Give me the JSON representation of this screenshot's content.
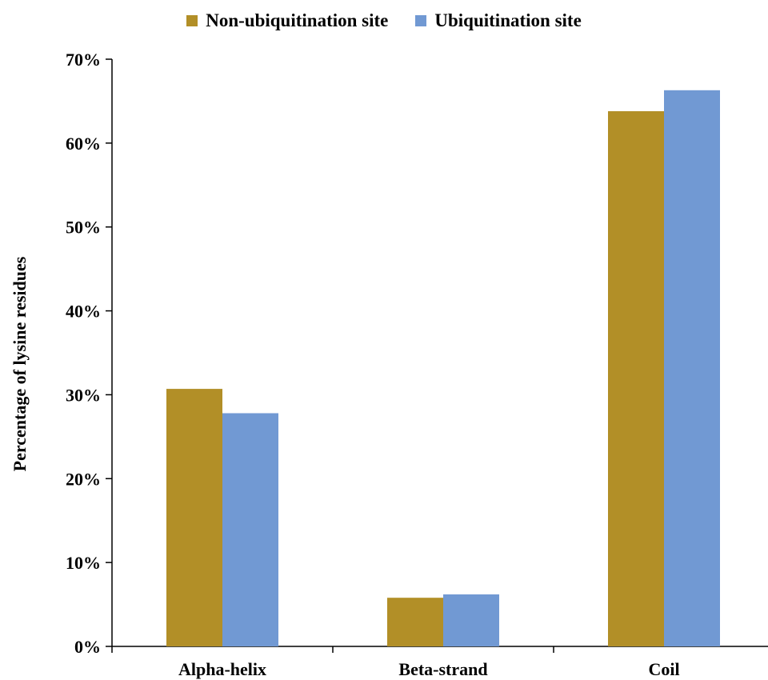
{
  "chart_data": {
    "type": "bar",
    "categories": [
      "Alpha-helix",
      "Beta-strand",
      "Coil"
    ],
    "series": [
      {
        "name": "Non-ubiquitination site",
        "color": "#b28f27",
        "values": [
          30.7,
          5.8,
          63.8
        ]
      },
      {
        "name": "Ubiquitination site",
        "color": "#7199d3",
        "values": [
          27.8,
          6.2,
          66.3
        ]
      }
    ],
    "ylabel": "Percentage of lysine residues",
    "ylim": [
      0,
      70
    ],
    "yticks": [
      0,
      10,
      20,
      30,
      40,
      50,
      60,
      70
    ],
    "ytick_labels": [
      "0%",
      "10%",
      "20%",
      "30%",
      "40%",
      "50%",
      "60%",
      "70%"
    ],
    "grid": false,
    "legend_position": "top-center"
  }
}
